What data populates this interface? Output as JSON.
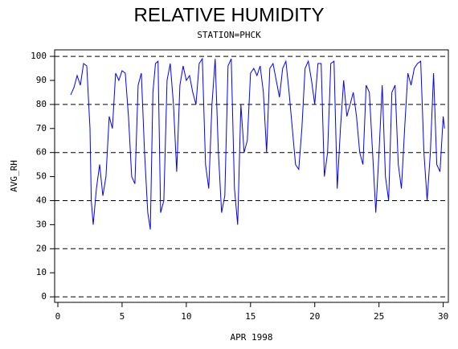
{
  "chart_data": {
    "type": "line",
    "title": "RELATIVE HUMIDITY",
    "subtitle": "STATION=PHCK",
    "y_label": "AVG_RH",
    "x_label": "APR 1998",
    "color": "#0000ff",
    "grid": true,
    "xlim": [
      -0.25,
      30.4
    ],
    "ylim": [
      -2.3,
      102.7
    ],
    "xticks": [
      0,
      5,
      10,
      15,
      20,
      25,
      30
    ],
    "yticks": [
      0,
      10,
      20,
      30,
      40,
      50,
      60,
      70,
      80,
      90,
      100
    ],
    "x": [
      1.0,
      1.25,
      1.5,
      1.75,
      2.0,
      2.25,
      2.5,
      2.6,
      2.75,
      3.0,
      3.25,
      3.5,
      3.75,
      4.0,
      4.25,
      4.5,
      4.75,
      5.0,
      5.25,
      5.5,
      5.75,
      6.0,
      6.25,
      6.5,
      6.75,
      7.0,
      7.2,
      7.4,
      7.6,
      7.8,
      8.0,
      8.25,
      8.5,
      8.75,
      9.0,
      9.25,
      9.5,
      9.75,
      10.0,
      10.25,
      10.5,
      10.75,
      11.0,
      11.25,
      11.5,
      11.75,
      12.0,
      12.25,
      12.5,
      12.75,
      13.0,
      13.25,
      13.5,
      13.75,
      14.0,
      14.25,
      14.5,
      14.75,
      15.0,
      15.25,
      15.5,
      15.75,
      16.0,
      16.25,
      16.5,
      16.75,
      17.0,
      17.25,
      17.5,
      17.75,
      18.0,
      18.25,
      18.5,
      18.75,
      19.0,
      19.25,
      19.5,
      19.75,
      20.0,
      20.25,
      20.5,
      20.75,
      21.0,
      21.25,
      21.5,
      21.75,
      22.0,
      22.25,
      22.5,
      22.75,
      23.0,
      23.25,
      23.5,
      23.75,
      24.0,
      24.25,
      24.5,
      24.75,
      25.0,
      25.25,
      25.5,
      25.75,
      26.0,
      26.25,
      26.5,
      26.75,
      27.0,
      27.25,
      27.5,
      27.75,
      28.0,
      28.25,
      28.5,
      28.75,
      29.0,
      29.25,
      29.5,
      29.75,
      30.0,
      30.1
    ],
    "values": [
      84,
      87,
      92,
      88,
      97,
      96,
      70,
      40,
      30,
      45,
      55,
      42,
      50,
      75,
      70,
      93,
      90,
      94,
      93,
      75,
      50,
      47,
      88,
      93,
      60,
      35,
      28,
      85,
      97,
      98,
      35,
      40,
      90,
      97,
      80,
      52,
      88,
      96,
      90,
      92,
      85,
      80,
      97,
      99,
      55,
      45,
      80,
      99,
      60,
      35,
      42,
      96,
      99,
      45,
      30,
      80,
      60,
      65,
      93,
      95,
      92,
      96,
      85,
      60,
      95,
      97,
      90,
      83,
      95,
      98,
      85,
      70,
      55,
      53,
      70,
      95,
      98,
      90,
      80,
      97,
      97,
      50,
      60,
      97,
      98,
      45,
      70,
      90,
      75,
      80,
      85,
      75,
      60,
      55,
      88,
      85,
      60,
      35,
      60,
      88,
      50,
      40,
      85,
      88,
      55,
      45,
      70,
      93,
      88,
      95,
      97,
      98,
      60,
      40,
      60,
      93,
      55,
      52,
      75,
      70
    ]
  }
}
